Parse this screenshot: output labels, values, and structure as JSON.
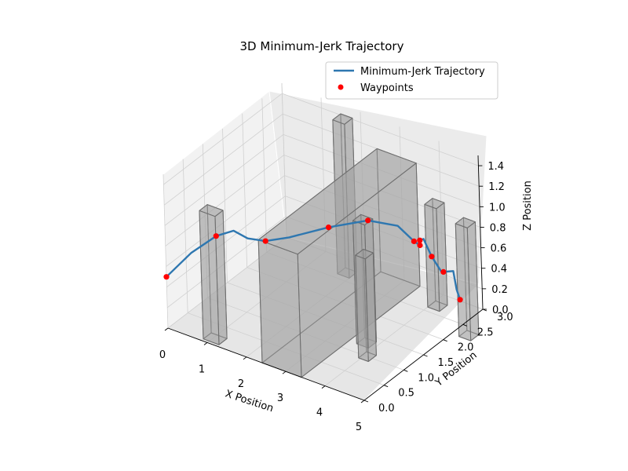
{
  "chart_data": {
    "type": "line3d",
    "title": "3D Minimum-Jerk Trajectory",
    "xlabel": "X Position",
    "ylabel": "Y Position",
    "zlabel": "Z Position",
    "xlim": [
      0,
      5
    ],
    "ylim": [
      0,
      3
    ],
    "zlim": [
      0,
      1.5
    ],
    "x_ticks": [
      "0",
      "1",
      "2",
      "3",
      "4",
      "5"
    ],
    "y_ticks": [
      "0.0",
      "0.5",
      "1.0",
      "1.5",
      "2.0",
      "2.5",
      "3.0"
    ],
    "z_ticks": [
      "0.0",
      "0.2",
      "0.4",
      "0.6",
      "0.8",
      "1.0",
      "1.2",
      "1.4"
    ],
    "grid": true,
    "legend_position": "top-right",
    "legend": [
      "Minimum-Jerk Trajectory",
      "Waypoints"
    ],
    "colors": {
      "trajectory": "#2e77b0",
      "waypoints": "#ff0000",
      "obstacle_fill": "#a3a3a3",
      "obstacle_edge": "#6e6e6e"
    },
    "series": [
      {
        "name": "Minimum-Jerk Trajectory",
        "type": "line",
        "points": [
          [
            0.0,
            0.0,
            0.5
          ],
          [
            0.55,
            0.1,
            0.78
          ],
          [
            1.0,
            0.3,
            0.95
          ],
          [
            1.3,
            0.45,
            1.0
          ],
          [
            1.55,
            0.55,
            0.93
          ],
          [
            1.8,
            0.75,
            0.88
          ],
          [
            2.1,
            1.05,
            0.87
          ],
          [
            2.6,
            1.55,
            0.89
          ],
          [
            3.1,
            2.05,
            0.88
          ],
          [
            3.5,
            2.4,
            0.78
          ],
          [
            3.75,
            2.55,
            0.62
          ],
          [
            3.85,
            2.6,
            0.58
          ],
          [
            3.9,
            2.55,
            0.65
          ],
          [
            4.05,
            2.5,
            0.7
          ],
          [
            4.35,
            2.4,
            0.6
          ],
          [
            4.75,
            2.25,
            0.55
          ],
          [
            5.0,
            2.3,
            0.58
          ],
          [
            5.05,
            2.32,
            0.4
          ],
          [
            5.1,
            2.35,
            0.3
          ]
        ]
      },
      {
        "name": "Waypoints",
        "type": "scatter",
        "points": [
          [
            0.0,
            0.0,
            0.5
          ],
          [
            1.0,
            0.3,
            0.95
          ],
          [
            1.8,
            0.75,
            0.88
          ],
          [
            2.6,
            1.55,
            0.89
          ],
          [
            3.1,
            2.05,
            0.88
          ],
          [
            3.75,
            2.55,
            0.62
          ],
          [
            3.85,
            2.6,
            0.58
          ],
          [
            3.9,
            2.55,
            0.65
          ],
          [
            4.35,
            2.4,
            0.6
          ],
          [
            4.85,
            2.2,
            0.58
          ],
          [
            5.1,
            2.35,
            0.3
          ]
        ]
      }
    ],
    "obstacles": [
      {
        "x": [
          0.85,
          1.25
        ],
        "y": [
          0.05,
          0.25
        ],
        "z": [
          0,
          1.25
        ]
      },
      {
        "x": [
          2.4,
          3.4
        ],
        "y": [
          0.0,
          3.0
        ],
        "z": [
          0,
          1.2
        ]
      },
      {
        "x": [
          1.7,
          2.0
        ],
        "y": [
          2.6,
          2.8
        ],
        "z": [
          0,
          1.5
        ]
      },
      {
        "x": [
          3.6,
          3.9
        ],
        "y": [
          1.2,
          1.4
        ],
        "z": [
          0,
          1.2
        ]
      },
      {
        "x": [
          3.95,
          4.2
        ],
        "y": [
          0.9,
          1.1
        ],
        "z": [
          0,
          1.0
        ]
      },
      {
        "x": [
          4.0,
          4.3
        ],
        "y": [
          2.6,
          2.8
        ],
        "z": [
          0,
          1.0
        ]
      },
      {
        "x": [
          5.2,
          5.5
        ],
        "y": [
          2.2,
          2.4
        ],
        "z": [
          0,
          1.1
        ]
      }
    ]
  }
}
